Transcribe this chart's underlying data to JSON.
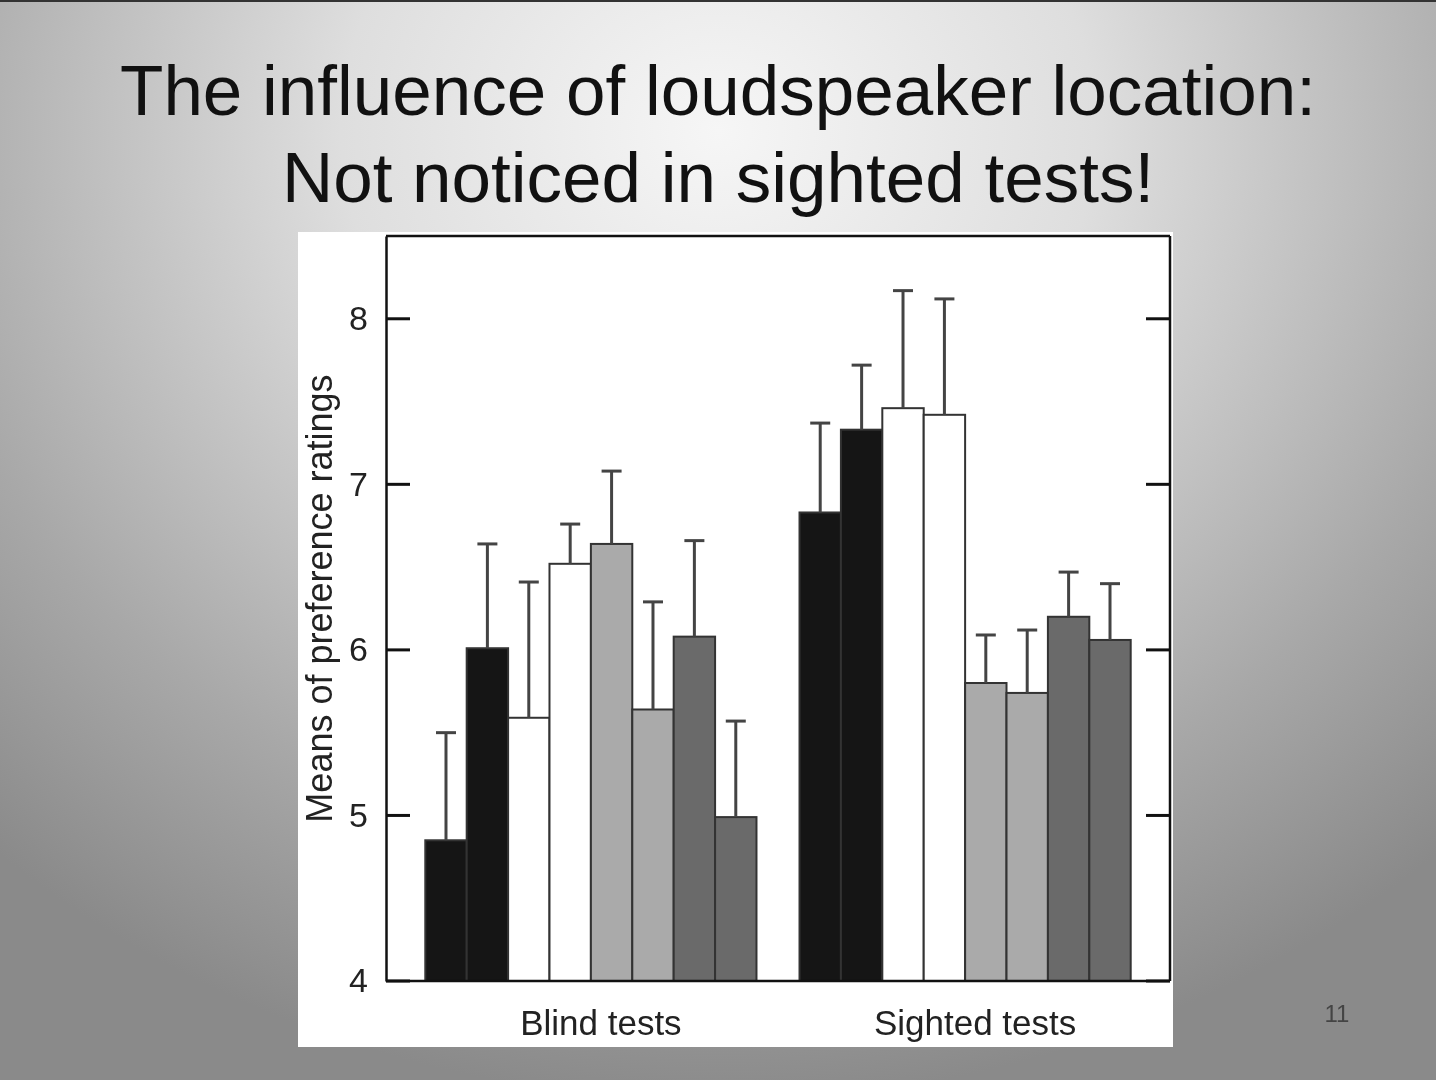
{
  "chart_data": {
    "type": "bar",
    "title": "The influence of loudspeaker location:\nNot noticed in sighted tests!",
    "ylabel": "Means of preference ratings",
    "categories": [
      "Blind tests",
      "Sighted tests"
    ],
    "series": [
      {
        "color": "#151515",
        "values": [
          4.85,
          6.83
        ],
        "errors": [
          [
            4.85,
            5.5
          ],
          [
            6.83,
            7.37
          ]
        ]
      },
      {
        "color": "#151515",
        "values": [
          6.01,
          7.33
        ],
        "errors": [
          [
            6.01,
            6.64
          ],
          [
            7.33,
            7.72
          ]
        ]
      },
      {
        "color": "#ffffff",
        "values": [
          5.59,
          7.46
        ],
        "errors": [
          [
            5.59,
            6.41
          ],
          [
            7.46,
            8.17
          ]
        ]
      },
      {
        "color": "#ffffff",
        "values": [
          6.52,
          7.42
        ],
        "errors": [
          [
            6.52,
            6.76
          ],
          [
            7.42,
            8.12
          ]
        ]
      },
      {
        "color": "#aaaaaa",
        "values": [
          6.64,
          5.8
        ],
        "errors": [
          [
            6.64,
            7.08
          ],
          [
            5.8,
            6.09
          ]
        ]
      },
      {
        "color": "#aaaaaa",
        "values": [
          5.64,
          5.74
        ],
        "errors": [
          [
            5.64,
            6.29
          ],
          [
            5.74,
            6.12
          ]
        ]
      },
      {
        "color": "#6a6a6a",
        "values": [
          6.08,
          6.2
        ],
        "errors": [
          [
            6.08,
            6.66
          ],
          [
            6.2,
            6.47
          ]
        ]
      },
      {
        "color": "#6a6a6a",
        "values": [
          4.99,
          6.06
        ],
        "errors": [
          [
            4.99,
            5.57
          ],
          [
            6.06,
            6.4
          ]
        ]
      }
    ],
    "ylim": [
      4,
      8.5
    ],
    "yticks": [
      4,
      5,
      6,
      7,
      8
    ],
    "annotations": [
      "11"
    ]
  }
}
